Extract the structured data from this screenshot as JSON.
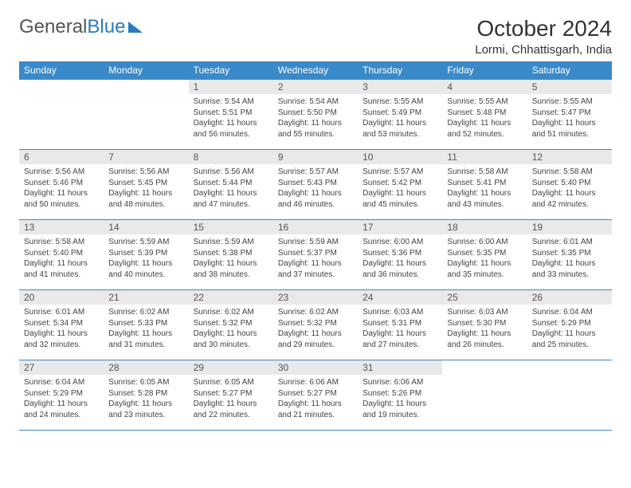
{
  "logo": {
    "text1": "General",
    "text2": "Blue"
  },
  "title": "October 2024",
  "location": "Lormi, Chhattisgarh, India",
  "headers": [
    "Sunday",
    "Monday",
    "Tuesday",
    "Wednesday",
    "Thursday",
    "Friday",
    "Saturday"
  ],
  "colors": {
    "header_bg": "#3a8ac9",
    "header_text": "#ffffff",
    "daynum_bg": "#e9e9e9",
    "border": "#3a8ac9",
    "text": "#444444",
    "logo_blue": "#2a7ac0"
  },
  "typography": {
    "title_fontsize": 28,
    "location_fontsize": 15,
    "header_fontsize": 12,
    "cell_fontsize": 10
  },
  "leading_blanks": 2,
  "days": [
    {
      "n": 1,
      "sunrise": "5:54 AM",
      "sunset": "5:51 PM",
      "daylight": "11 hours and 56 minutes."
    },
    {
      "n": 2,
      "sunrise": "5:54 AM",
      "sunset": "5:50 PM",
      "daylight": "11 hours and 55 minutes."
    },
    {
      "n": 3,
      "sunrise": "5:55 AM",
      "sunset": "5:49 PM",
      "daylight": "11 hours and 53 minutes."
    },
    {
      "n": 4,
      "sunrise": "5:55 AM",
      "sunset": "5:48 PM",
      "daylight": "11 hours and 52 minutes."
    },
    {
      "n": 5,
      "sunrise": "5:55 AM",
      "sunset": "5:47 PM",
      "daylight": "11 hours and 51 minutes."
    },
    {
      "n": 6,
      "sunrise": "5:56 AM",
      "sunset": "5:46 PM",
      "daylight": "11 hours and 50 minutes."
    },
    {
      "n": 7,
      "sunrise": "5:56 AM",
      "sunset": "5:45 PM",
      "daylight": "11 hours and 48 minutes."
    },
    {
      "n": 8,
      "sunrise": "5:56 AM",
      "sunset": "5:44 PM",
      "daylight": "11 hours and 47 minutes."
    },
    {
      "n": 9,
      "sunrise": "5:57 AM",
      "sunset": "5:43 PM",
      "daylight": "11 hours and 46 minutes."
    },
    {
      "n": 10,
      "sunrise": "5:57 AM",
      "sunset": "5:42 PM",
      "daylight": "11 hours and 45 minutes."
    },
    {
      "n": 11,
      "sunrise": "5:58 AM",
      "sunset": "5:41 PM",
      "daylight": "11 hours and 43 minutes."
    },
    {
      "n": 12,
      "sunrise": "5:58 AM",
      "sunset": "5:40 PM",
      "daylight": "11 hours and 42 minutes."
    },
    {
      "n": 13,
      "sunrise": "5:58 AM",
      "sunset": "5:40 PM",
      "daylight": "11 hours and 41 minutes."
    },
    {
      "n": 14,
      "sunrise": "5:59 AM",
      "sunset": "5:39 PM",
      "daylight": "11 hours and 40 minutes."
    },
    {
      "n": 15,
      "sunrise": "5:59 AM",
      "sunset": "5:38 PM",
      "daylight": "11 hours and 38 minutes."
    },
    {
      "n": 16,
      "sunrise": "5:59 AM",
      "sunset": "5:37 PM",
      "daylight": "11 hours and 37 minutes."
    },
    {
      "n": 17,
      "sunrise": "6:00 AM",
      "sunset": "5:36 PM",
      "daylight": "11 hours and 36 minutes."
    },
    {
      "n": 18,
      "sunrise": "6:00 AM",
      "sunset": "5:35 PM",
      "daylight": "11 hours and 35 minutes."
    },
    {
      "n": 19,
      "sunrise": "6:01 AM",
      "sunset": "5:35 PM",
      "daylight": "11 hours and 33 minutes."
    },
    {
      "n": 20,
      "sunrise": "6:01 AM",
      "sunset": "5:34 PM",
      "daylight": "11 hours and 32 minutes."
    },
    {
      "n": 21,
      "sunrise": "6:02 AM",
      "sunset": "5:33 PM",
      "daylight": "11 hours and 31 minutes."
    },
    {
      "n": 22,
      "sunrise": "6:02 AM",
      "sunset": "5:32 PM",
      "daylight": "11 hours and 30 minutes."
    },
    {
      "n": 23,
      "sunrise": "6:02 AM",
      "sunset": "5:32 PM",
      "daylight": "11 hours and 29 minutes."
    },
    {
      "n": 24,
      "sunrise": "6:03 AM",
      "sunset": "5:31 PM",
      "daylight": "11 hours and 27 minutes."
    },
    {
      "n": 25,
      "sunrise": "6:03 AM",
      "sunset": "5:30 PM",
      "daylight": "11 hours and 26 minutes."
    },
    {
      "n": 26,
      "sunrise": "6:04 AM",
      "sunset": "5:29 PM",
      "daylight": "11 hours and 25 minutes."
    },
    {
      "n": 27,
      "sunrise": "6:04 AM",
      "sunset": "5:29 PM",
      "daylight": "11 hours and 24 minutes."
    },
    {
      "n": 28,
      "sunrise": "6:05 AM",
      "sunset": "5:28 PM",
      "daylight": "11 hours and 23 minutes."
    },
    {
      "n": 29,
      "sunrise": "6:05 AM",
      "sunset": "5:27 PM",
      "daylight": "11 hours and 22 minutes."
    },
    {
      "n": 30,
      "sunrise": "6:06 AM",
      "sunset": "5:27 PM",
      "daylight": "11 hours and 21 minutes."
    },
    {
      "n": 31,
      "sunrise": "6:06 AM",
      "sunset": "5:26 PM",
      "daylight": "11 hours and 19 minutes."
    }
  ],
  "labels": {
    "sunrise": "Sunrise:",
    "sunset": "Sunset:",
    "daylight": "Daylight:"
  }
}
